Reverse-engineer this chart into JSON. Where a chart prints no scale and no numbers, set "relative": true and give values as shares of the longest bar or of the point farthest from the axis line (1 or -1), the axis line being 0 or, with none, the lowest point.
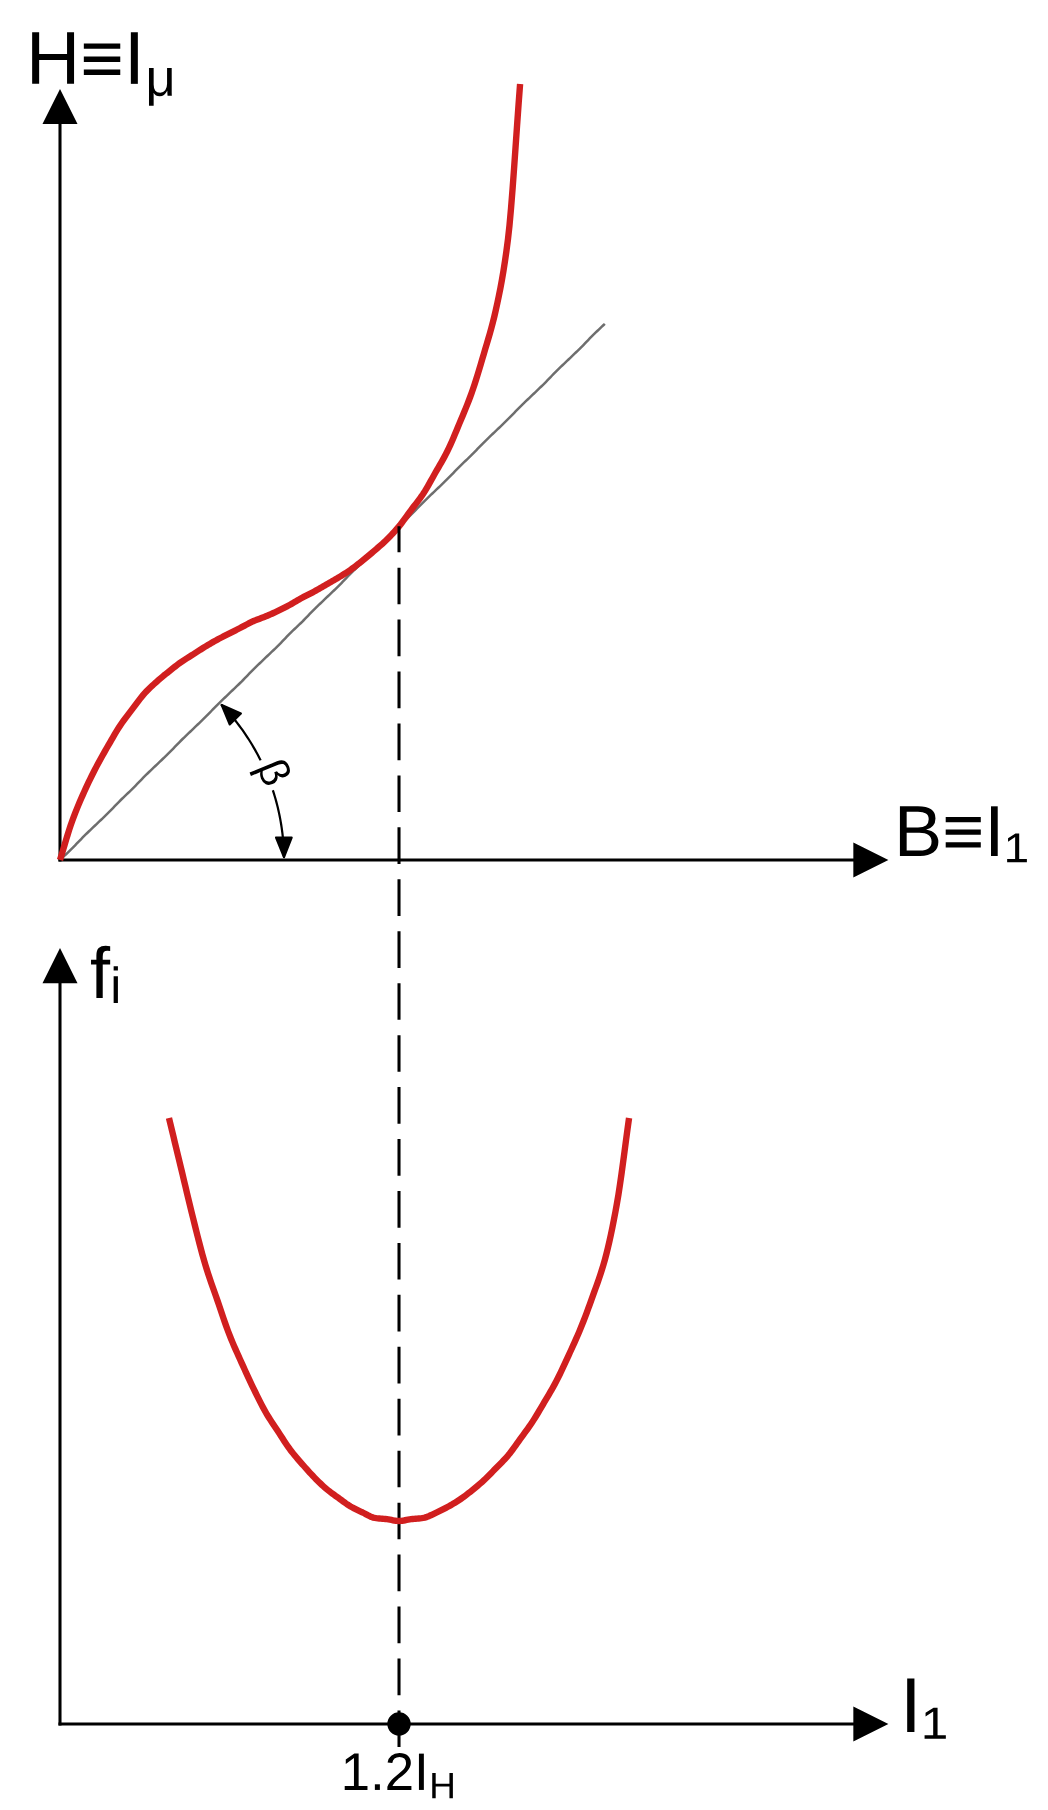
{
  "chart_data": [
    {
      "type": "line",
      "xlabel": "B≡I₁",
      "ylabel": "H≡I$_{μ}$",
      "relative": true,
      "annotations": [
        "β"
      ],
      "categories": [
        null,
        null,
        null,
        null,
        null,
        null,
        null,
        null,
        null,
        null,
        null,
        null,
        null,
        null,
        null,
        null,
        null,
        null,
        null,
        null,
        null,
        null,
        null,
        null,
        null,
        null,
        null,
        null,
        null,
        null,
        null,
        null,
        null,
        null,
        null,
        null,
        null,
        null,
        null,
        null,
        null,
        null,
        null,
        null,
        null,
        null,
        null,
        null,
        null,
        null,
        null,
        null,
        null,
        null,
        null,
        null,
        null,
        null,
        null,
        null,
        null,
        null,
        null,
        null,
        null,
        null,
        null
      ],
      "series": [
        {
          "color": "#d11f1f",
          "values": [
            0,
            0.05,
            0.088,
            0.12,
            0.148,
            0.174,
            0.195,
            0.215,
            0.23,
            0.243,
            0.255,
            0.265,
            0.275,
            0.284,
            0.292,
            0.3,
            0.308,
            0.314,
            0.321,
            0.329,
            0.338,
            0.346,
            0.355,
            0.364,
            0.374,
            0.386,
            0.399,
            0.413,
            0.43,
            0.451,
            0.472,
            0.499,
            0.527,
            0.563,
            0.602,
            0.652,
            0.709,
            0.8,
            1.0,
            null,
            null,
            null,
            null,
            null,
            null,
            null,
            null,
            null,
            null,
            null,
            null,
            null,
            null,
            null,
            null,
            null,
            null,
            null,
            null,
            null,
            null,
            null,
            null,
            null,
            null,
            null,
            null
          ]
        },
        {
          "color": "#6e6e6e",
          "values": [
            0,
            0.015,
            0.031,
            0.046,
            0.061,
            0.077,
            0.092,
            0.108,
            0.123,
            0.138,
            0.154,
            0.169,
            0.184,
            0.2,
            0.215,
            0.23,
            0.246,
            0.261,
            0.276,
            0.292,
            0.307,
            0.323,
            0.338,
            0.353,
            0.369,
            0.384,
            0.399,
            0.415,
            0.43,
            0.445,
            0.461,
            0.476,
            0.491,
            0.507,
            0.522,
            0.538,
            0.553,
            0.568,
            0.584,
            0.599,
            0.614,
            0.63,
            0.645,
            0.66,
            0.676,
            0.691,
            null,
            null,
            null,
            null,
            null,
            null,
            null,
            null,
            null,
            null,
            null,
            null,
            null,
            null,
            null,
            null,
            null,
            null,
            null,
            null,
            null
          ]
        }
      ]
    },
    {
      "type": "line",
      "xlabel": "I₁",
      "ylabel": "fᵢ",
      "relative": true,
      "annotations": [
        "1.2I$_{H}$"
      ],
      "categories": [
        null,
        null,
        null,
        null,
        null,
        null,
        null,
        null,
        null,
        null,
        null,
        null,
        null,
        null,
        null,
        null,
        null,
        null,
        null,
        null,
        null,
        null,
        null,
        null,
        null,
        null,
        null,
        null,
        null,
        null,
        null,
        null,
        null,
        null,
        null,
        null,
        null,
        null,
        null,
        null,
        null,
        null,
        null,
        null,
        null,
        null,
        null,
        null,
        null,
        null,
        null,
        null,
        null,
        null,
        null,
        null,
        null,
        null,
        null,
        null,
        null,
        null,
        null,
        null,
        null,
        null,
        null
      ],
      "series": [
        {
          "color": "#d11f1f",
          "values": [
            null,
            null,
            null,
            null,
            null,
            null,
            null,
            null,
            null,
            1.0,
            0.917,
            0.834,
            0.758,
            0.699,
            0.642,
            0.596,
            0.553,
            0.514,
            0.483,
            0.453,
            0.429,
            0.407,
            0.388,
            0.373,
            0.359,
            0.349,
            0.34,
            0.338,
            0.335,
            0.338,
            0.34,
            0.348,
            0.358,
            0.37,
            0.385,
            0.402,
            0.422,
            0.443,
            0.47,
            0.498,
            0.531,
            0.566,
            0.608,
            0.653,
            0.706,
            0.766,
            0.859,
            1.0,
            null,
            null,
            null,
            null,
            null,
            null,
            null,
            null,
            null,
            null,
            null,
            null,
            null,
            null,
            null,
            null,
            null,
            null,
            null
          ]
        },
        {
          "type": "scatter",
          "color": "#000000",
          "marker": "circle",
          "values": [
            null,
            null,
            null,
            null,
            null,
            null,
            null,
            null,
            null,
            null,
            null,
            null,
            null,
            null,
            null,
            null,
            null,
            null,
            null,
            null,
            null,
            null,
            null,
            null,
            null,
            null,
            null,
            null,
            0,
            null,
            null,
            null,
            null,
            null,
            null,
            null,
            null,
            null,
            null,
            null,
            null,
            null,
            null,
            null,
            null,
            null,
            null,
            null,
            null,
            null,
            null,
            null,
            null,
            null,
            null,
            null,
            null,
            null,
            null,
            null,
            null,
            null,
            null,
            null,
            null,
            null,
            null
          ]
        }
      ]
    }
  ]
}
